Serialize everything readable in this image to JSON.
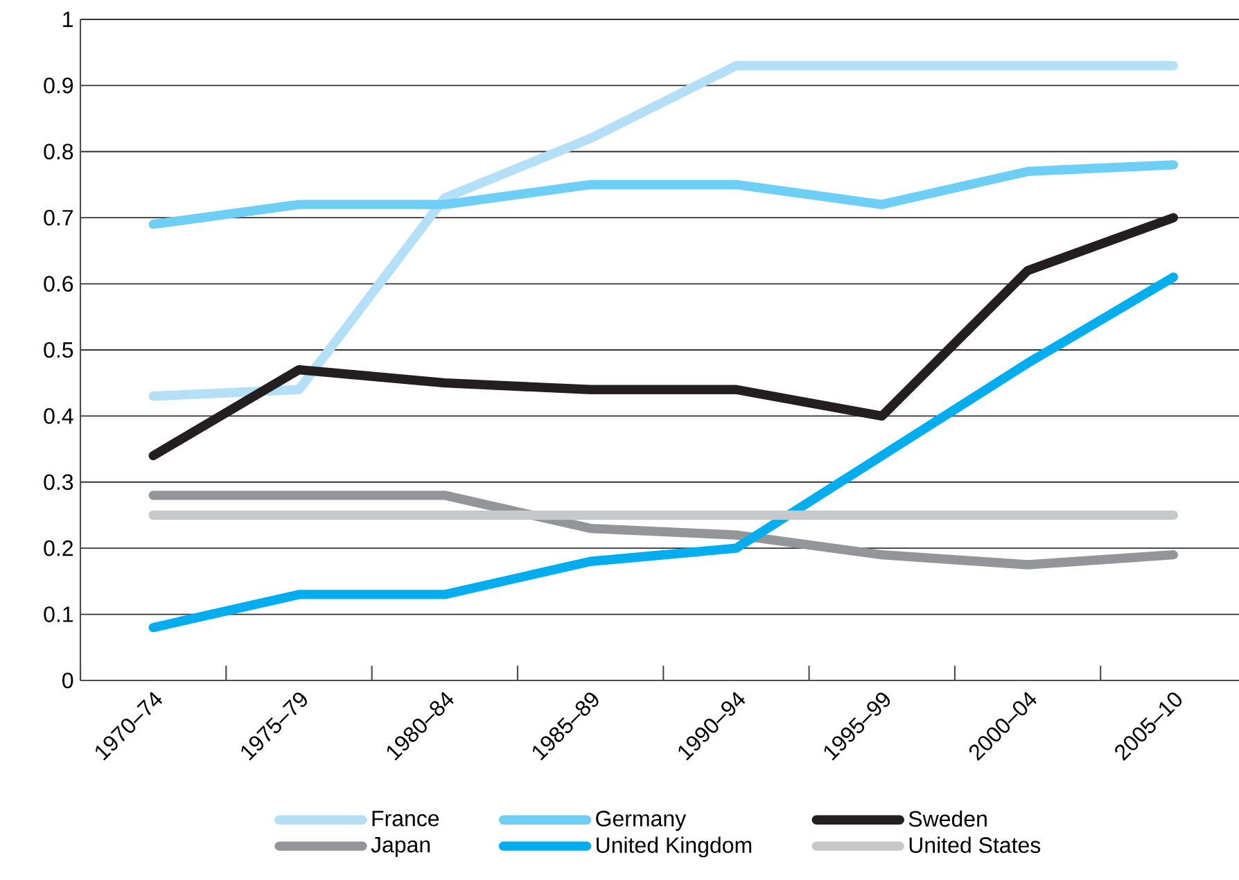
{
  "chart_data": {
    "type": "line",
    "categories": [
      "1970–74",
      "1975–79",
      "1980–84",
      "1985–89",
      "1990–94",
      "1995–99",
      "2000–04",
      "2005–10"
    ],
    "series": [
      {
        "name": "France",
        "color": "#b3e0f7",
        "values": [
          0.43,
          0.44,
          0.73,
          0.82,
          0.93,
          0.93,
          0.93,
          0.93
        ]
      },
      {
        "name": "Germany",
        "color": "#6dcff6",
        "values": [
          0.69,
          0.72,
          0.72,
          0.75,
          0.75,
          0.72,
          0.77,
          0.78
        ]
      },
      {
        "name": "Sweden",
        "color": "#231f20",
        "values": [
          0.34,
          0.47,
          0.45,
          0.44,
          0.44,
          0.4,
          0.62,
          0.7
        ]
      },
      {
        "name": "Japan",
        "color": "#939598",
        "values": [
          0.28,
          0.28,
          0.28,
          0.23,
          0.22,
          0.19,
          0.175,
          0.19
        ]
      },
      {
        "name": "United Kingdom",
        "color": "#00aeef",
        "values": [
          0.08,
          0.13,
          0.13,
          0.18,
          0.2,
          0.34,
          0.48,
          0.61
        ]
      },
      {
        "name": "United States",
        "color": "#c7c8ca",
        "values": [
          0.25,
          0.25,
          0.25,
          0.25,
          0.25,
          0.25,
          0.25,
          0.25
        ]
      }
    ],
    "ylim": [
      0,
      1
    ],
    "yticks": [
      0,
      0.1,
      0.2,
      0.3,
      0.4,
      0.5,
      0.6,
      0.7,
      0.8,
      0.9,
      1
    ],
    "grid": "y",
    "legend": "bottom",
    "marker": "none",
    "line_style": "solid"
  }
}
